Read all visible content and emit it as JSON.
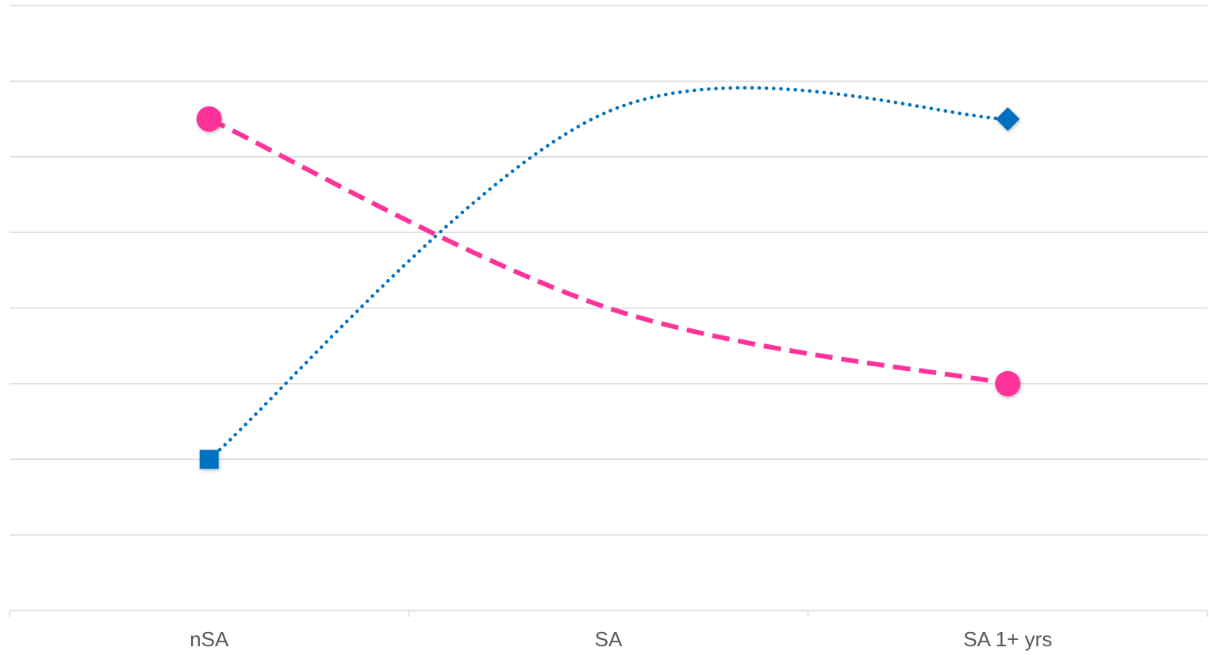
{
  "chart_data": {
    "type": "line",
    "title": "",
    "xlabel": "",
    "ylabel": "",
    "categories": [
      "nSA",
      "SA",
      "SA 1+ yrs"
    ],
    "ylim": [
      0,
      8
    ],
    "grid": true,
    "series": [
      {
        "values": [
          6.5,
          4.0,
          3.0
        ],
        "color": "#ff3399",
        "line_style": "dashed",
        "smooth": true,
        "marker": "circle"
      },
      {
        "values": [
          2.0,
          6.6,
          6.5
        ],
        "color": "#0070c0",
        "line_style": "dotted",
        "smooth": true,
        "marker": "square-start-diamond-end"
      }
    ]
  }
}
